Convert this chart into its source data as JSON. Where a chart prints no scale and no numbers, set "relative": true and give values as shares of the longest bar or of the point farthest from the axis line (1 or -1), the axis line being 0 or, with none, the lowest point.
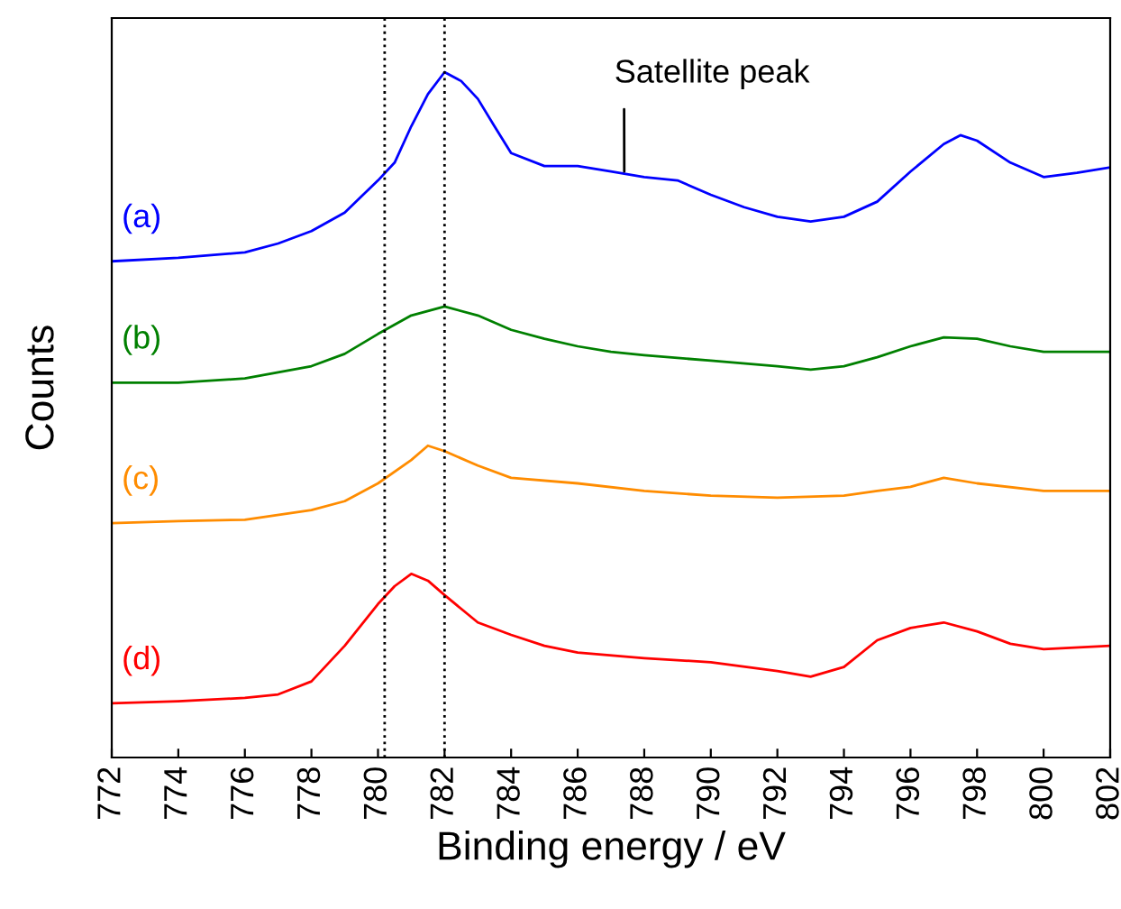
{
  "chart_data": {
    "type": "line",
    "relative": true,
    "xlabel": "Binding energy / eV",
    "ylabel": "Counts",
    "xlim": [
      772,
      802
    ],
    "xticks": [
      772,
      774,
      776,
      778,
      780,
      782,
      784,
      786,
      788,
      790,
      792,
      794,
      796,
      798,
      800,
      802
    ],
    "tick_labels": "x",
    "grid": false,
    "legend": false,
    "marker": "none",
    "line_style": "solid",
    "ref_lines": [
      {
        "axis": "x",
        "value": 780.2,
        "color": "#000000",
        "line_style": "dotted"
      },
      {
        "axis": "x",
        "value": 782.0,
        "color": "#000000",
        "line_style": "dotted"
      }
    ],
    "annotations": [
      {
        "text": "Satellite peak",
        "x": 787.4,
        "y": 0.855
      }
    ],
    "series": [
      {
        "name": "(a)",
        "color": "#0000ff",
        "x": [
          772,
          774,
          776,
          777,
          778,
          779,
          780,
          780.5,
          781,
          781.5,
          782,
          782.5,
          783,
          783.5,
          784,
          785,
          786,
          787,
          788,
          789,
          790,
          791,
          792,
          793,
          794,
          795,
          796,
          797,
          797.5,
          798,
          799,
          800,
          801,
          802
        ],
        "values": [
          0.724,
          0.729,
          0.737,
          0.75,
          0.768,
          0.795,
          0.842,
          0.868,
          0.921,
          0.968,
          1.0,
          0.987,
          0.961,
          0.921,
          0.882,
          0.863,
          0.863,
          0.855,
          0.847,
          0.842,
          0.821,
          0.803,
          0.789,
          0.782,
          0.789,
          0.811,
          0.855,
          0.895,
          0.908,
          0.9,
          0.868,
          0.847,
          0.853,
          0.861
        ]
      },
      {
        "name": "(b)",
        "color": "#008000",
        "x": [
          772,
          774,
          776,
          778,
          779,
          780,
          781,
          782,
          783,
          784,
          785,
          786,
          787,
          788,
          790,
          792,
          793,
          794,
          795,
          796,
          797,
          798,
          799,
          800,
          802
        ],
        "values": [
          0.547,
          0.547,
          0.553,
          0.571,
          0.589,
          0.618,
          0.645,
          0.658,
          0.645,
          0.624,
          0.611,
          0.6,
          0.592,
          0.587,
          0.579,
          0.571,
          0.566,
          0.571,
          0.584,
          0.6,
          0.613,
          0.611,
          0.6,
          0.592,
          0.592
        ]
      },
      {
        "name": "(c)",
        "color": "#ff8c00",
        "x": [
          772,
          774,
          776,
          778,
          779,
          780,
          781,
          781.5,
          782,
          783,
          784,
          786,
          788,
          790,
          792,
          794,
          795,
          796,
          797,
          798,
          800,
          802
        ],
        "values": [
          0.342,
          0.345,
          0.347,
          0.361,
          0.374,
          0.4,
          0.434,
          0.455,
          0.447,
          0.426,
          0.408,
          0.4,
          0.389,
          0.382,
          0.379,
          0.382,
          0.389,
          0.395,
          0.408,
          0.4,
          0.389,
          0.389
        ]
      },
      {
        "name": "(d)",
        "color": "#ff0000",
        "x": [
          772,
          774,
          776,
          777,
          778,
          779,
          780,
          780.5,
          781,
          781.5,
          782,
          783,
          784,
          785,
          786,
          788,
          790,
          792,
          793,
          794,
          795,
          796,
          797,
          798,
          799,
          800,
          802
        ],
        "values": [
          0.079,
          0.082,
          0.087,
          0.092,
          0.111,
          0.163,
          0.224,
          0.25,
          0.268,
          0.258,
          0.237,
          0.197,
          0.179,
          0.163,
          0.153,
          0.145,
          0.139,
          0.126,
          0.118,
          0.132,
          0.171,
          0.189,
          0.197,
          0.184,
          0.166,
          0.158,
          0.163
        ]
      }
    ]
  }
}
